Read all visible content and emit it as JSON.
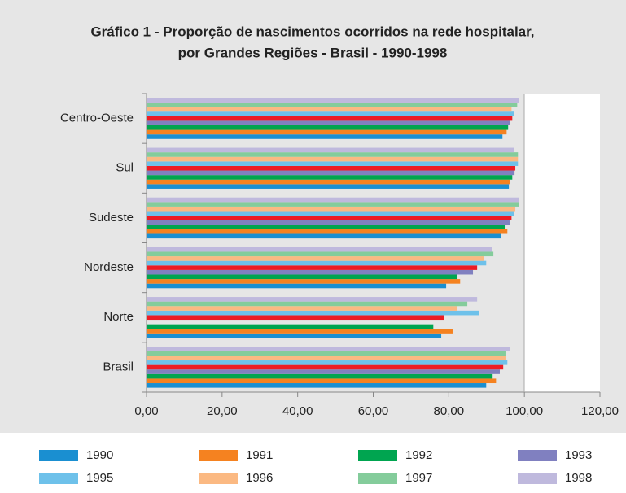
{
  "chart_data": {
    "type": "hbar",
    "title": [
      "Gráfico 1 - Proporção de nascimentos ocorridos na rede hospitalar,",
      "por Grandes Regiões - Brasil - 1990-1998"
    ],
    "categories": [
      "Centro-Oeste",
      "Sul",
      "Sudeste",
      "Nordeste",
      "Norte",
      "Brasil"
    ],
    "series": [
      {
        "name": "1990",
        "color": "#1a8fd1",
        "values": [
          94.2,
          95.9,
          93.8,
          79.3,
          78.0,
          89.9
        ]
      },
      {
        "name": "1991",
        "color": "#f58220",
        "values": [
          95.3,
          96.3,
          95.5,
          83.0,
          81.0,
          92.5
        ]
      },
      {
        "name": "1992",
        "color": "#00a550",
        "values": [
          95.7,
          96.8,
          94.8,
          82.3,
          75.9,
          91.6
        ]
      },
      {
        "name": "1993",
        "color": "#8080c0",
        "values": [
          96.3,
          97.4,
          96.1,
          86.4,
          null,
          93.5
        ]
      },
      {
        "name": "1994",
        "color": "#ed1c24",
        "values": [
          96.8,
          97.6,
          96.6,
          87.5,
          78.7,
          94.4
        ]
      },
      {
        "name": "1995",
        "color": "#6ec1ea",
        "values": [
          97.2,
          98.3,
          97.2,
          89.9,
          87.9,
          95.5
        ]
      },
      {
        "name": "1996",
        "color": "#fbb982",
        "values": [
          96.6,
          98.3,
          97.6,
          89.4,
          82.3,
          95.0
        ]
      },
      {
        "name": "1997",
        "color": "#84cc9b",
        "values": [
          98.1,
          98.3,
          98.5,
          91.8,
          84.9,
          95.0
        ]
      },
      {
        "name": "1998",
        "color": "#bfb9dd",
        "values": [
          98.5,
          97.2,
          98.5,
          91.4,
          87.5,
          96.1
        ]
      }
    ],
    "xlim": [
      0,
      120
    ],
    "xticks": [
      {
        "value": 0,
        "label": "0,00"
      },
      {
        "value": 20,
        "label": "20,00"
      },
      {
        "value": 40,
        "label": "40,00"
      },
      {
        "value": 60,
        "label": "60,00"
      },
      {
        "value": 80,
        "label": "80,00"
      },
      {
        "value": 100,
        "label": "100,00"
      },
      {
        "value": 120,
        "label": "120,00"
      }
    ]
  }
}
